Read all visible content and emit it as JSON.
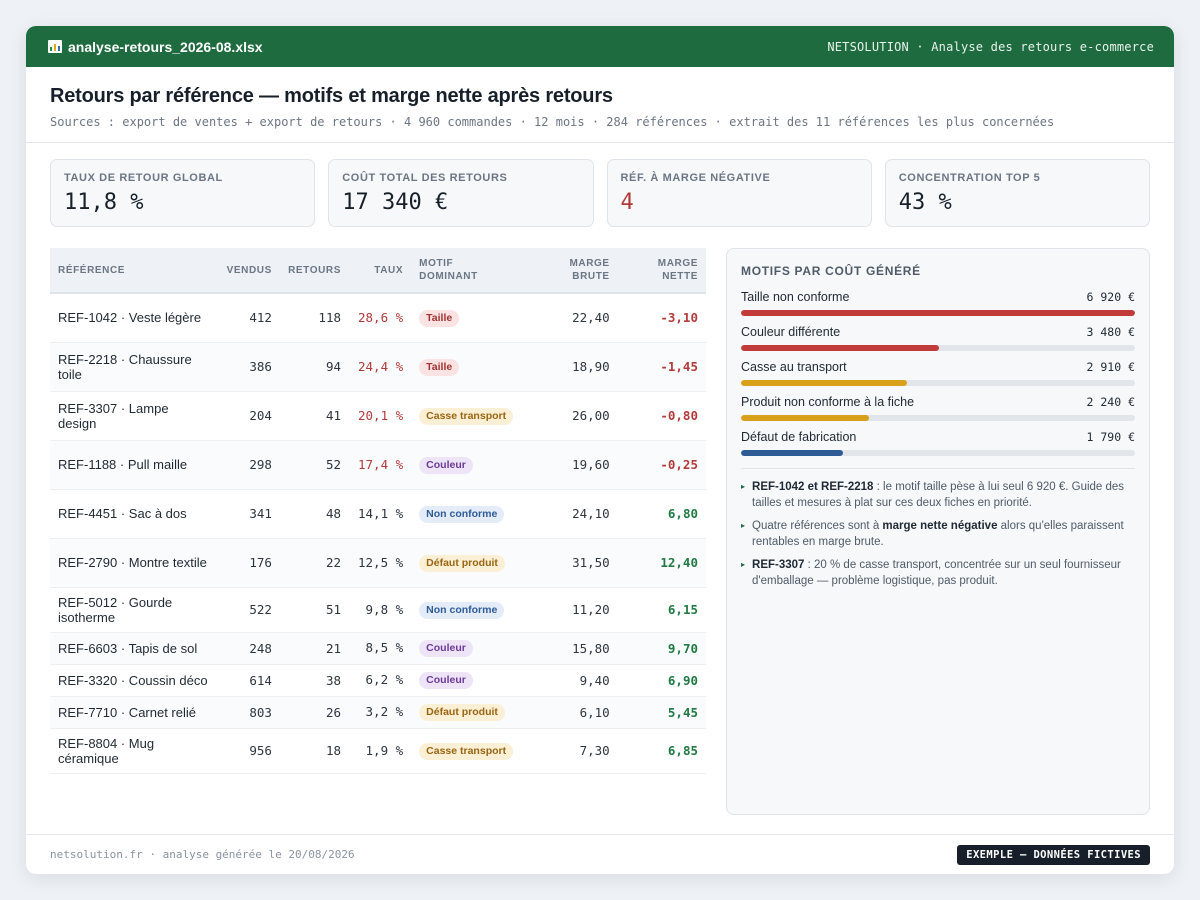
{
  "window": {
    "filename": "analyse-retours_2026-08.xlsx",
    "brand": "NETSOLUTION · Analyse des retours e-commerce"
  },
  "header": {
    "title": "Retours par référence — motifs et marge nette après retours",
    "subtitle": "Sources : export de ventes + export de retours · 4 960 commandes · 12 mois · 284 références · extrait des 11 références les plus concernées"
  },
  "kpis": [
    {
      "label": "Taux de retour global",
      "value": "11,8 %",
      "negative": false
    },
    {
      "label": "Coût total des retours",
      "value": "17 340 €",
      "negative": false
    },
    {
      "label": "Réf. à marge négative",
      "value": "4",
      "negative": true
    },
    {
      "label": "Concentration top 5",
      "value": "43 %",
      "negative": false
    }
  ],
  "table": {
    "headers": {
      "reference": "Référence",
      "vendus": "Vendus",
      "retours": "Retours",
      "taux": "Taux",
      "motif_l1": "Motif",
      "motif_l2": "dominant",
      "brute_l1": "Marge",
      "brute_l2": "brute",
      "nette_l1": "Marge",
      "nette_l2": "nette"
    },
    "rows": [
      {
        "ref": "REF-1042 · Veste légère",
        "vendus": "412",
        "retours": "118",
        "taux": "28,6 %",
        "high": true,
        "motif": "Taille",
        "color": "red",
        "brute": "22,40",
        "nette": "-3,10"
      },
      {
        "ref": "REF-2218 · Chaussure toile",
        "vendus": "386",
        "retours": "94",
        "taux": "24,4 %",
        "high": true,
        "motif": "Taille",
        "color": "red",
        "brute": "18,90",
        "nette": "-1,45"
      },
      {
        "ref": "REF-3307 · Lampe design",
        "vendus": "204",
        "retours": "41",
        "taux": "20,1 %",
        "high": true,
        "motif": "Casse transport",
        "color": "orange",
        "brute": "26,00",
        "nette": "-0,80"
      },
      {
        "ref": "REF-1188 · Pull maille",
        "vendus": "298",
        "retours": "52",
        "taux": "17,4 %",
        "high": true,
        "motif": "Couleur",
        "color": "purple",
        "brute": "19,60",
        "nette": "-0,25"
      },
      {
        "ref": "REF-4451 · Sac à dos",
        "vendus": "341",
        "retours": "48",
        "taux": "14,1 %",
        "high": false,
        "motif": "Non conforme",
        "color": "blue",
        "brute": "24,10",
        "nette": "6,80"
      },
      {
        "ref": "REF-2790 · Montre textile",
        "vendus": "176",
        "retours": "22",
        "taux": "12,5 %",
        "high": false,
        "motif": "Défaut produit",
        "color": "orange",
        "brute": "31,50",
        "nette": "12,40"
      },
      {
        "ref": "REF-5012 · Gourde isotherme",
        "vendus": "522",
        "retours": "51",
        "taux": "9,8 %",
        "high": false,
        "motif": "Non conforme",
        "color": "blue",
        "brute": "11,20",
        "nette": "6,15"
      },
      {
        "ref": "REF-6603 · Tapis de sol",
        "vendus": "248",
        "retours": "21",
        "taux": "8,5 %",
        "high": false,
        "motif": "Couleur",
        "color": "purple",
        "brute": "15,80",
        "nette": "9,70"
      },
      {
        "ref": "REF-3320 · Coussin déco",
        "vendus": "614",
        "retours": "38",
        "taux": "6,2 %",
        "high": false,
        "motif": "Couleur",
        "color": "purple",
        "brute": "9,40",
        "nette": "6,90"
      },
      {
        "ref": "REF-7710 · Carnet relié",
        "vendus": "803",
        "retours": "26",
        "taux": "3,2 %",
        "high": false,
        "motif": "Défaut produit",
        "color": "orange",
        "brute": "6,10",
        "nette": "5,45"
      },
      {
        "ref": "REF-8804 · Mug céramique",
        "vendus": "956",
        "retours": "18",
        "taux": "1,9 %",
        "high": false,
        "motif": "Casse transport",
        "color": "orange",
        "brute": "7,30",
        "nette": "6,85"
      }
    ]
  },
  "side": {
    "title": "Motifs par coût généré",
    "bars": [
      {
        "label": "Taille non conforme",
        "value": "6 920 €",
        "amount": 6920,
        "color": "#c23b3b"
      },
      {
        "label": "Couleur différente",
        "value": "3 480 €",
        "amount": 3480,
        "color": "#c23b3b"
      },
      {
        "label": "Casse au transport",
        "value": "2 910 €",
        "amount": 2910,
        "color": "#d9a01c"
      },
      {
        "label": "Produit non conforme à la fiche",
        "value": "2 240 €",
        "amount": 2240,
        "color": "#d9a01c"
      },
      {
        "label": "Défaut de fabrication",
        "value": "1 790 €",
        "amount": 1790,
        "color": "#2f5b95"
      }
    ],
    "notes": [
      {
        "bold": "REF-1042 et REF-2218",
        "text": " : le motif taille pèse à lui seul 6 920 €. Guide des tailles et mesures à plat sur ces deux fiches en priorité.",
        "bold_first": true
      },
      {
        "before": "Quatre références sont à ",
        "bold": "marge nette négative",
        "after": " alors qu'elles paraissent rentables en marge brute.",
        "bold_first": false
      },
      {
        "bold": "REF-3307",
        "text": " : 20 % de casse transport, concentrée sur un seul fournisseur d'emballage — problème logistique, pas produit.",
        "bold_first": true
      }
    ]
  },
  "footer": {
    "text": "netsolution.fr · analyse générée le 20/08/2026",
    "badge": "EXEMPLE — DONNÉES FICTIVES"
  }
}
